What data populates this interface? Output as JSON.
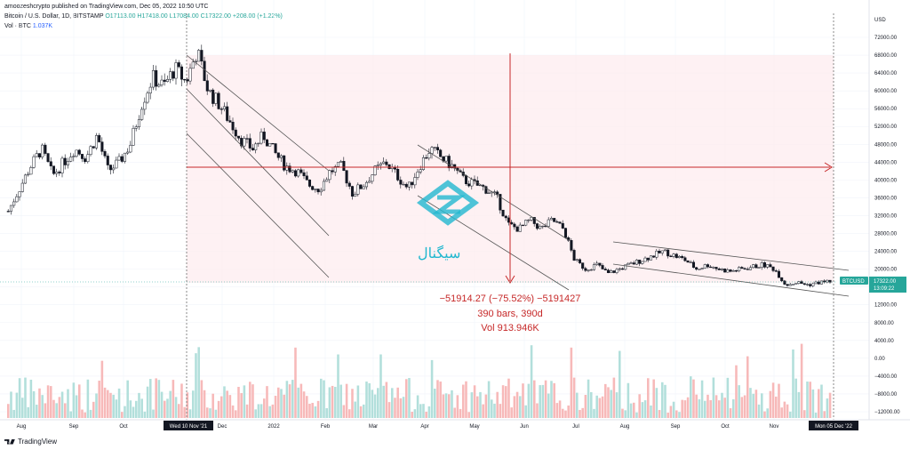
{
  "header": {
    "publisher": "amoozeshcrypto published on TradingView.com, Dec 05, 2022 10:50 UTC",
    "symbol": "Bitcoin / U.S. Dollar, 1D, BITSTAMP",
    "ohlc": "O17113.00 H17418.00 L17084.00 C17322.00 +208.00 (+1.22%)",
    "vol_label": "Vol · BTC",
    "vol_value": "1.037K"
  },
  "price_axis": {
    "currency": "USD",
    "ticks": [
      "72000.00",
      "68000.00",
      "64000.00",
      "60000.00",
      "56000.00",
      "52000.00",
      "48000.00",
      "44000.00",
      "40000.00",
      "36000.00",
      "32000.00",
      "28000.00",
      "24000.00",
      "20000.00",
      "16000.00",
      "12000.00",
      "8000.00",
      "4000.00",
      "0.00",
      "−4000.00",
      "−8000.00",
      "−12000.00"
    ]
  },
  "price_tag": {
    "symbol": "BTCUSD",
    "price": "17322.00",
    "countdown": "13:09:22",
    "color": "#26a69a"
  },
  "time_axis": {
    "labels": [
      "Aug",
      "Sep",
      "Oct",
      "Nov",
      "Dec",
      "2022",
      "Feb",
      "Mar",
      "Apr",
      "May",
      "Jun",
      "Jul",
      "Aug",
      "Sep",
      "Oct",
      "Nov"
    ],
    "start_marker": "Wed 10 Nov '21",
    "end_marker": "Mon 05 Dec '22"
  },
  "measure": {
    "line1": "−51914.27 (−75.52%) −5191427",
    "line2": "390 bars, 390d",
    "line3": "Vol 913.946K",
    "color": "#c62828"
  },
  "watermark": {
    "text": "سیگنال",
    "color": "#22b8cf"
  },
  "footer": {
    "brand": "TradingView"
  },
  "chart_data": {
    "type": "candlestick",
    "symbol": "BTCUSD",
    "ylim": [
      -12000,
      72000
    ],
    "series": [
      {
        "name": "close",
        "values": [
          33000,
          38000,
          43000,
          47000,
          41000,
          44000,
          47000,
          45000,
          50000,
          42000,
          44000,
          48000,
          57000,
          63000,
          61000,
          65000,
          62000,
          69000,
          60000,
          57000,
          53000,
          49000,
          47000,
          50000,
          46000,
          43000,
          42000,
          39000,
          38000,
          42000,
          43000,
          37000,
          39000,
          42000,
          44000,
          41000,
          38000,
          43000,
          47000,
          45000,
          43000,
          40000,
          39000,
          38000,
          36000,
          30000,
          29000,
          31000,
          29000,
          31000,
          29000,
          22000,
          20000,
          21000,
          19000,
          20000,
          21000,
          22000,
          23000,
          24000,
          23000,
          22000,
          20000,
          21000,
          20000,
          19500,
          20000,
          20500,
          21000,
          20000,
          16500,
          17000,
          16500,
          17000,
          17322
        ]
      }
    ]
  }
}
